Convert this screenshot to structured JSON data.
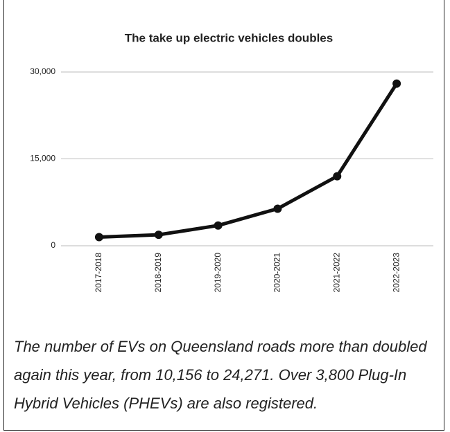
{
  "chart_data": {
    "type": "line",
    "title": "The take up electric vehicles doubles",
    "categories": [
      "2017-2018",
      "2018-2019",
      "2019-2020",
      "2020-2021",
      "2021-2022",
      "2022-2023"
    ],
    "series": [
      {
        "name": "Electric vehicles",
        "color": "#111111",
        "values": [
          1500,
          1900,
          3500,
          6400,
          12000,
          28000
        ]
      }
    ],
    "ylim": [
      0,
      30000
    ],
    "yticks": [
      0,
      {
        "value": 15000,
        "label": "15,000"
      },
      {
        "value": 30000,
        "label": "30,000"
      }
    ],
    "grid": true,
    "caption": "The number of EVs on Queensland roads more than doubled again this year, from 10,156 to 24,271. Over 3,800 Plug-In Hybrid Vehicles (PHEVs) are also registered."
  }
}
